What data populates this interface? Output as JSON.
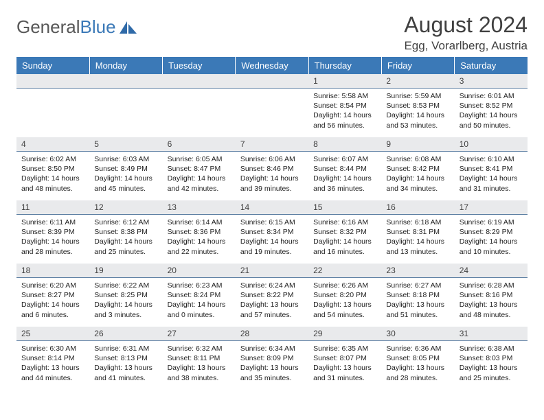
{
  "brand": {
    "name_part1": "General",
    "name_part2": "Blue"
  },
  "title": "August 2024",
  "location": "Egg, Vorarlberg, Austria",
  "colors": {
    "header_bg": "#3b79b7",
    "header_text": "#ffffff",
    "daynum_bg": "#e9eaec",
    "daynum_border": "#5d7fa3",
    "body_text": "#222222",
    "page_bg": "#ffffff"
  },
  "day_headers": [
    "Sunday",
    "Monday",
    "Tuesday",
    "Wednesday",
    "Thursday",
    "Friday",
    "Saturday"
  ],
  "weeks": [
    [
      null,
      null,
      null,
      null,
      {
        "n": "1",
        "sunrise": "5:58 AM",
        "sunset": "8:54 PM",
        "daylight": "14 hours and 56 minutes."
      },
      {
        "n": "2",
        "sunrise": "5:59 AM",
        "sunset": "8:53 PM",
        "daylight": "14 hours and 53 minutes."
      },
      {
        "n": "3",
        "sunrise": "6:01 AM",
        "sunset": "8:52 PM",
        "daylight": "14 hours and 50 minutes."
      }
    ],
    [
      {
        "n": "4",
        "sunrise": "6:02 AM",
        "sunset": "8:50 PM",
        "daylight": "14 hours and 48 minutes."
      },
      {
        "n": "5",
        "sunrise": "6:03 AM",
        "sunset": "8:49 PM",
        "daylight": "14 hours and 45 minutes."
      },
      {
        "n": "6",
        "sunrise": "6:05 AM",
        "sunset": "8:47 PM",
        "daylight": "14 hours and 42 minutes."
      },
      {
        "n": "7",
        "sunrise": "6:06 AM",
        "sunset": "8:46 PM",
        "daylight": "14 hours and 39 minutes."
      },
      {
        "n": "8",
        "sunrise": "6:07 AM",
        "sunset": "8:44 PM",
        "daylight": "14 hours and 36 minutes."
      },
      {
        "n": "9",
        "sunrise": "6:08 AM",
        "sunset": "8:42 PM",
        "daylight": "14 hours and 34 minutes."
      },
      {
        "n": "10",
        "sunrise": "6:10 AM",
        "sunset": "8:41 PM",
        "daylight": "14 hours and 31 minutes."
      }
    ],
    [
      {
        "n": "11",
        "sunrise": "6:11 AM",
        "sunset": "8:39 PM",
        "daylight": "14 hours and 28 minutes."
      },
      {
        "n": "12",
        "sunrise": "6:12 AM",
        "sunset": "8:38 PM",
        "daylight": "14 hours and 25 minutes."
      },
      {
        "n": "13",
        "sunrise": "6:14 AM",
        "sunset": "8:36 PM",
        "daylight": "14 hours and 22 minutes."
      },
      {
        "n": "14",
        "sunrise": "6:15 AM",
        "sunset": "8:34 PM",
        "daylight": "14 hours and 19 minutes."
      },
      {
        "n": "15",
        "sunrise": "6:16 AM",
        "sunset": "8:32 PM",
        "daylight": "14 hours and 16 minutes."
      },
      {
        "n": "16",
        "sunrise": "6:18 AM",
        "sunset": "8:31 PM",
        "daylight": "14 hours and 13 minutes."
      },
      {
        "n": "17",
        "sunrise": "6:19 AM",
        "sunset": "8:29 PM",
        "daylight": "14 hours and 10 minutes."
      }
    ],
    [
      {
        "n": "18",
        "sunrise": "6:20 AM",
        "sunset": "8:27 PM",
        "daylight": "14 hours and 6 minutes."
      },
      {
        "n": "19",
        "sunrise": "6:22 AM",
        "sunset": "8:25 PM",
        "daylight": "14 hours and 3 minutes."
      },
      {
        "n": "20",
        "sunrise": "6:23 AM",
        "sunset": "8:24 PM",
        "daylight": "14 hours and 0 minutes."
      },
      {
        "n": "21",
        "sunrise": "6:24 AM",
        "sunset": "8:22 PM",
        "daylight": "13 hours and 57 minutes."
      },
      {
        "n": "22",
        "sunrise": "6:26 AM",
        "sunset": "8:20 PM",
        "daylight": "13 hours and 54 minutes."
      },
      {
        "n": "23",
        "sunrise": "6:27 AM",
        "sunset": "8:18 PM",
        "daylight": "13 hours and 51 minutes."
      },
      {
        "n": "24",
        "sunrise": "6:28 AM",
        "sunset": "8:16 PM",
        "daylight": "13 hours and 48 minutes."
      }
    ],
    [
      {
        "n": "25",
        "sunrise": "6:30 AM",
        "sunset": "8:14 PM",
        "daylight": "13 hours and 44 minutes."
      },
      {
        "n": "26",
        "sunrise": "6:31 AM",
        "sunset": "8:13 PM",
        "daylight": "13 hours and 41 minutes."
      },
      {
        "n": "27",
        "sunrise": "6:32 AM",
        "sunset": "8:11 PM",
        "daylight": "13 hours and 38 minutes."
      },
      {
        "n": "28",
        "sunrise": "6:34 AM",
        "sunset": "8:09 PM",
        "daylight": "13 hours and 35 minutes."
      },
      {
        "n": "29",
        "sunrise": "6:35 AM",
        "sunset": "8:07 PM",
        "daylight": "13 hours and 31 minutes."
      },
      {
        "n": "30",
        "sunrise": "6:36 AM",
        "sunset": "8:05 PM",
        "daylight": "13 hours and 28 minutes."
      },
      {
        "n": "31",
        "sunrise": "6:38 AM",
        "sunset": "8:03 PM",
        "daylight": "13 hours and 25 minutes."
      }
    ]
  ],
  "labels": {
    "sunrise": "Sunrise: ",
    "sunset": "Sunset: ",
    "daylight": "Daylight: "
  }
}
